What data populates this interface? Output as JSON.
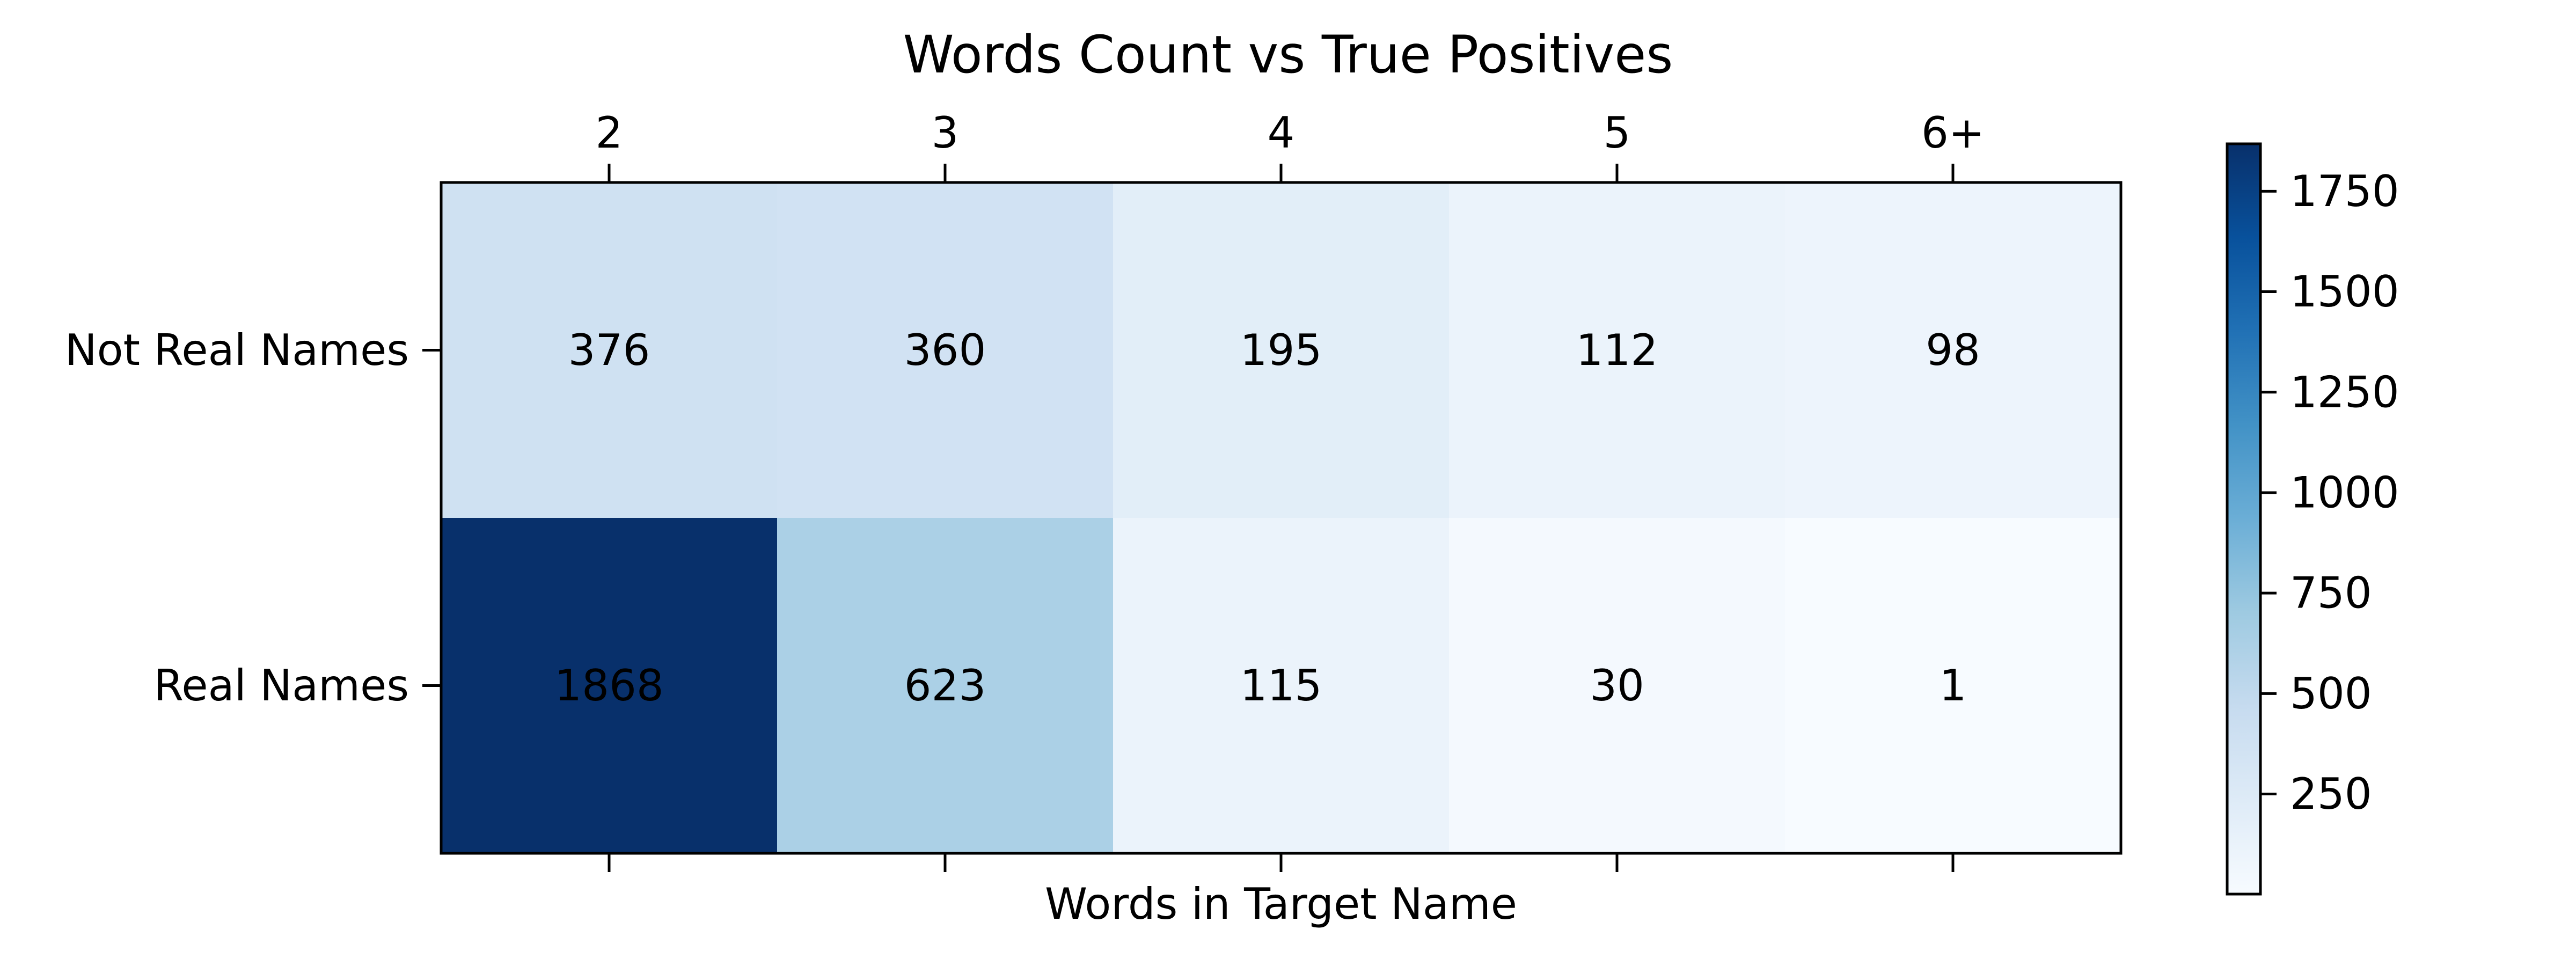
{
  "chart_data": {
    "type": "heatmap",
    "title": "Words Count vs True Positives",
    "xlabel": "Words in Target Name",
    "ylabel": "",
    "x_categories": [
      "2",
      "3",
      "4",
      "5",
      "6+"
    ],
    "y_categories": [
      "Not Real Names",
      "Real Names"
    ],
    "values": [
      [
        376,
        360,
        195,
        112,
        98
      ],
      [
        1868,
        623,
        115,
        30,
        1
      ]
    ],
    "colormap": "Blues",
    "colorbar": {
      "range": [
        1,
        1868
      ],
      "ticks": [
        250,
        500,
        750,
        1000,
        1250,
        1500,
        1750
      ]
    },
    "x_tick_labels_position": "top",
    "grid": false
  }
}
